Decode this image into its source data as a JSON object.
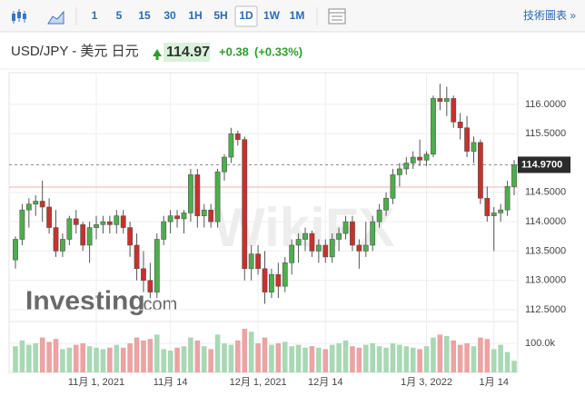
{
  "toolbar": {
    "intervals": [
      "1",
      "5",
      "15",
      "30",
      "1H",
      "5H",
      "1D",
      "1W",
      "1M"
    ],
    "selected": "1D",
    "link": "技術圖表 »"
  },
  "header": {
    "symbol": "USD/JPY - 美元 日元",
    "price": "114.97",
    "change": "+0.38",
    "change_pct": "(+0.33%)"
  },
  "watermark": {
    "brand": "Investing",
    "suffix": ".com",
    "overlay": "WikiFX"
  },
  "chart_data": {
    "type": "candlestick",
    "categories": [
      null,
      null,
      null,
      null,
      null,
      null,
      null,
      null,
      null,
      null,
      null,
      null,
      "11月 1, 2021",
      null,
      null,
      null,
      null,
      null,
      null,
      null,
      null,
      null,
      null,
      "11月 14",
      null,
      null,
      null,
      null,
      null,
      null,
      null,
      null,
      null,
      null,
      null,
      null,
      "12月 1, 2021",
      null,
      null,
      null,
      null,
      null,
      null,
      null,
      null,
      null,
      "12月 14",
      null,
      null,
      null,
      null,
      null,
      null,
      null,
      null,
      null,
      null,
      null,
      null,
      null,
      null,
      "1月 3, 2022",
      null,
      null,
      null,
      null,
      null,
      null,
      null,
      null,
      null,
      "1月 14",
      null,
      null,
      null
    ],
    "open": [
      113.35,
      113.7,
      114.2,
      114.3,
      114.35,
      114.25,
      113.9,
      113.5,
      113.7,
      114.05,
      113.95,
      113.6,
      113.9,
      113.95,
      114.0,
      113.95,
      114.1,
      113.9,
      113.6,
      113.2,
      113.0,
      112.8,
      113.7,
      114.0,
      114.1,
      114.05,
      114.15,
      114.8,
      114.1,
      114.2,
      114.0,
      114.85,
      115.1,
      115.5,
      115.4,
      113.2,
      113.45,
      113.2,
      112.8,
      113.1,
      112.9,
      113.3,
      113.6,
      113.7,
      113.8,
      113.5,
      113.6,
      113.4,
      113.7,
      113.8,
      114.0,
      113.6,
      113.5,
      113.6,
      114.0,
      114.2,
      114.4,
      114.8,
      114.9,
      115.0,
      115.1,
      115.05,
      115.15,
      116.1,
      116.05,
      116.1,
      115.7,
      115.6,
      115.2,
      115.35,
      114.4,
      114.1,
      114.15,
      114.2,
      114.6
    ],
    "high": [
      113.75,
      114.3,
      114.4,
      114.45,
      114.7,
      114.4,
      114.2,
      113.8,
      114.1,
      114.2,
      114.0,
      114.0,
      114.1,
      114.1,
      114.1,
      114.2,
      114.2,
      114.0,
      113.8,
      113.5,
      113.3,
      113.8,
      114.1,
      114.2,
      114.2,
      114.2,
      114.9,
      114.9,
      114.3,
      114.3,
      114.9,
      115.15,
      115.6,
      115.55,
      115.45,
      113.6,
      113.6,
      113.5,
      113.2,
      113.3,
      113.4,
      113.7,
      113.8,
      113.9,
      113.85,
      113.7,
      113.7,
      113.8,
      113.9,
      114.1,
      114.1,
      113.7,
      114.0,
      114.1,
      114.3,
      114.5,
      114.9,
      115.0,
      115.1,
      115.2,
      115.4,
      115.2,
      116.15,
      116.35,
      116.3,
      116.15,
      115.85,
      115.8,
      115.45,
      115.4,
      114.6,
      114.25,
      114.3,
      114.7,
      115.05
    ],
    "low": [
      113.2,
      113.6,
      113.9,
      114.1,
      114.0,
      113.8,
      113.4,
      113.4,
      113.6,
      113.8,
      113.5,
      113.3,
      113.7,
      113.8,
      113.8,
      113.8,
      113.8,
      113.4,
      113.0,
      112.8,
      112.7,
      112.7,
      113.6,
      113.8,
      113.9,
      113.8,
      114.0,
      113.9,
      113.9,
      113.9,
      113.9,
      114.7,
      115.0,
      115.3,
      113.0,
      113.0,
      113.1,
      112.6,
      112.7,
      112.7,
      112.8,
      113.1,
      113.3,
      113.5,
      113.4,
      113.3,
      113.3,
      113.3,
      113.5,
      113.7,
      113.5,
      113.2,
      113.4,
      113.5,
      113.9,
      114.1,
      114.3,
      114.6,
      114.8,
      114.9,
      114.95,
      114.95,
      115.1,
      115.9,
      115.8,
      115.6,
      115.4,
      115.1,
      115.0,
      114.3,
      114.0,
      113.5,
      114.0,
      114.1,
      114.45
    ],
    "close": [
      113.7,
      114.2,
      114.3,
      114.35,
      114.25,
      113.9,
      113.5,
      113.7,
      114.05,
      113.95,
      113.6,
      113.9,
      113.95,
      114.0,
      113.95,
      114.1,
      113.9,
      113.6,
      113.2,
      113.0,
      112.8,
      113.7,
      114.0,
      114.1,
      114.05,
      114.15,
      114.8,
      114.1,
      114.2,
      114.0,
      114.85,
      115.1,
      115.5,
      115.4,
      113.2,
      113.45,
      113.2,
      112.8,
      113.1,
      112.9,
      113.3,
      113.6,
      113.7,
      113.8,
      113.5,
      113.6,
      113.4,
      113.7,
      113.8,
      114.0,
      113.6,
      113.5,
      113.6,
      114.0,
      114.2,
      114.4,
      114.8,
      114.9,
      115.0,
      115.1,
      115.05,
      115.15,
      116.1,
      116.05,
      116.1,
      115.7,
      115.6,
      115.2,
      115.35,
      114.4,
      114.1,
      114.15,
      114.2,
      114.6,
      114.97
    ],
    "volume": [
      90000,
      110000,
      95000,
      100000,
      120000,
      105000,
      115000,
      80000,
      85000,
      95000,
      100000,
      90000,
      85000,
      80000,
      85000,
      95000,
      85000,
      100000,
      120000,
      110000,
      115000,
      130000,
      80000,
      75000,
      85000,
      90000,
      120000,
      110000,
      90000,
      80000,
      130000,
      100000,
      95000,
      110000,
      150000,
      140000,
      100000,
      120000,
      95000,
      100000,
      105000,
      90000,
      95000,
      85000,
      90000,
      85000,
      80000,
      95000,
      100000,
      110000,
      90000,
      85000,
      95000,
      100000,
      90000,
      85000,
      100000,
      95000,
      90000,
      85000,
      80000,
      90000,
      120000,
      130000,
      125000,
      110000,
      95000,
      100000,
      90000,
      120000,
      115000,
      80000,
      95000,
      70000,
      40000
    ],
    "ylim": [
      112.33,
      116.54
    ],
    "yticks": [
      {
        "value": 112.5,
        "label": "112.5000"
      },
      {
        "value": 113,
        "label": "113.0000"
      },
      {
        "value": 113.5,
        "label": "113.5000"
      },
      {
        "value": 114,
        "label": "114.0000"
      },
      {
        "value": 114.5,
        "label": "114.5000"
      },
      {
        "value": 115.5,
        "label": "115.5000"
      },
      {
        "value": 116,
        "label": "116.0000"
      }
    ],
    "volume_lim": [
      0,
      160000
    ],
    "volume_ticks": [
      {
        "value": 100000,
        "label": "100.0k"
      }
    ],
    "last_price": {
      "value": 114.97,
      "label": "114.9700"
    },
    "prev_close": 114.59,
    "up_color": "#4cae4c",
    "down_color": "#c9302c",
    "volume_up_color": "#a8d8b4",
    "volume_down_color": "#eba3a3",
    "grid": true
  }
}
